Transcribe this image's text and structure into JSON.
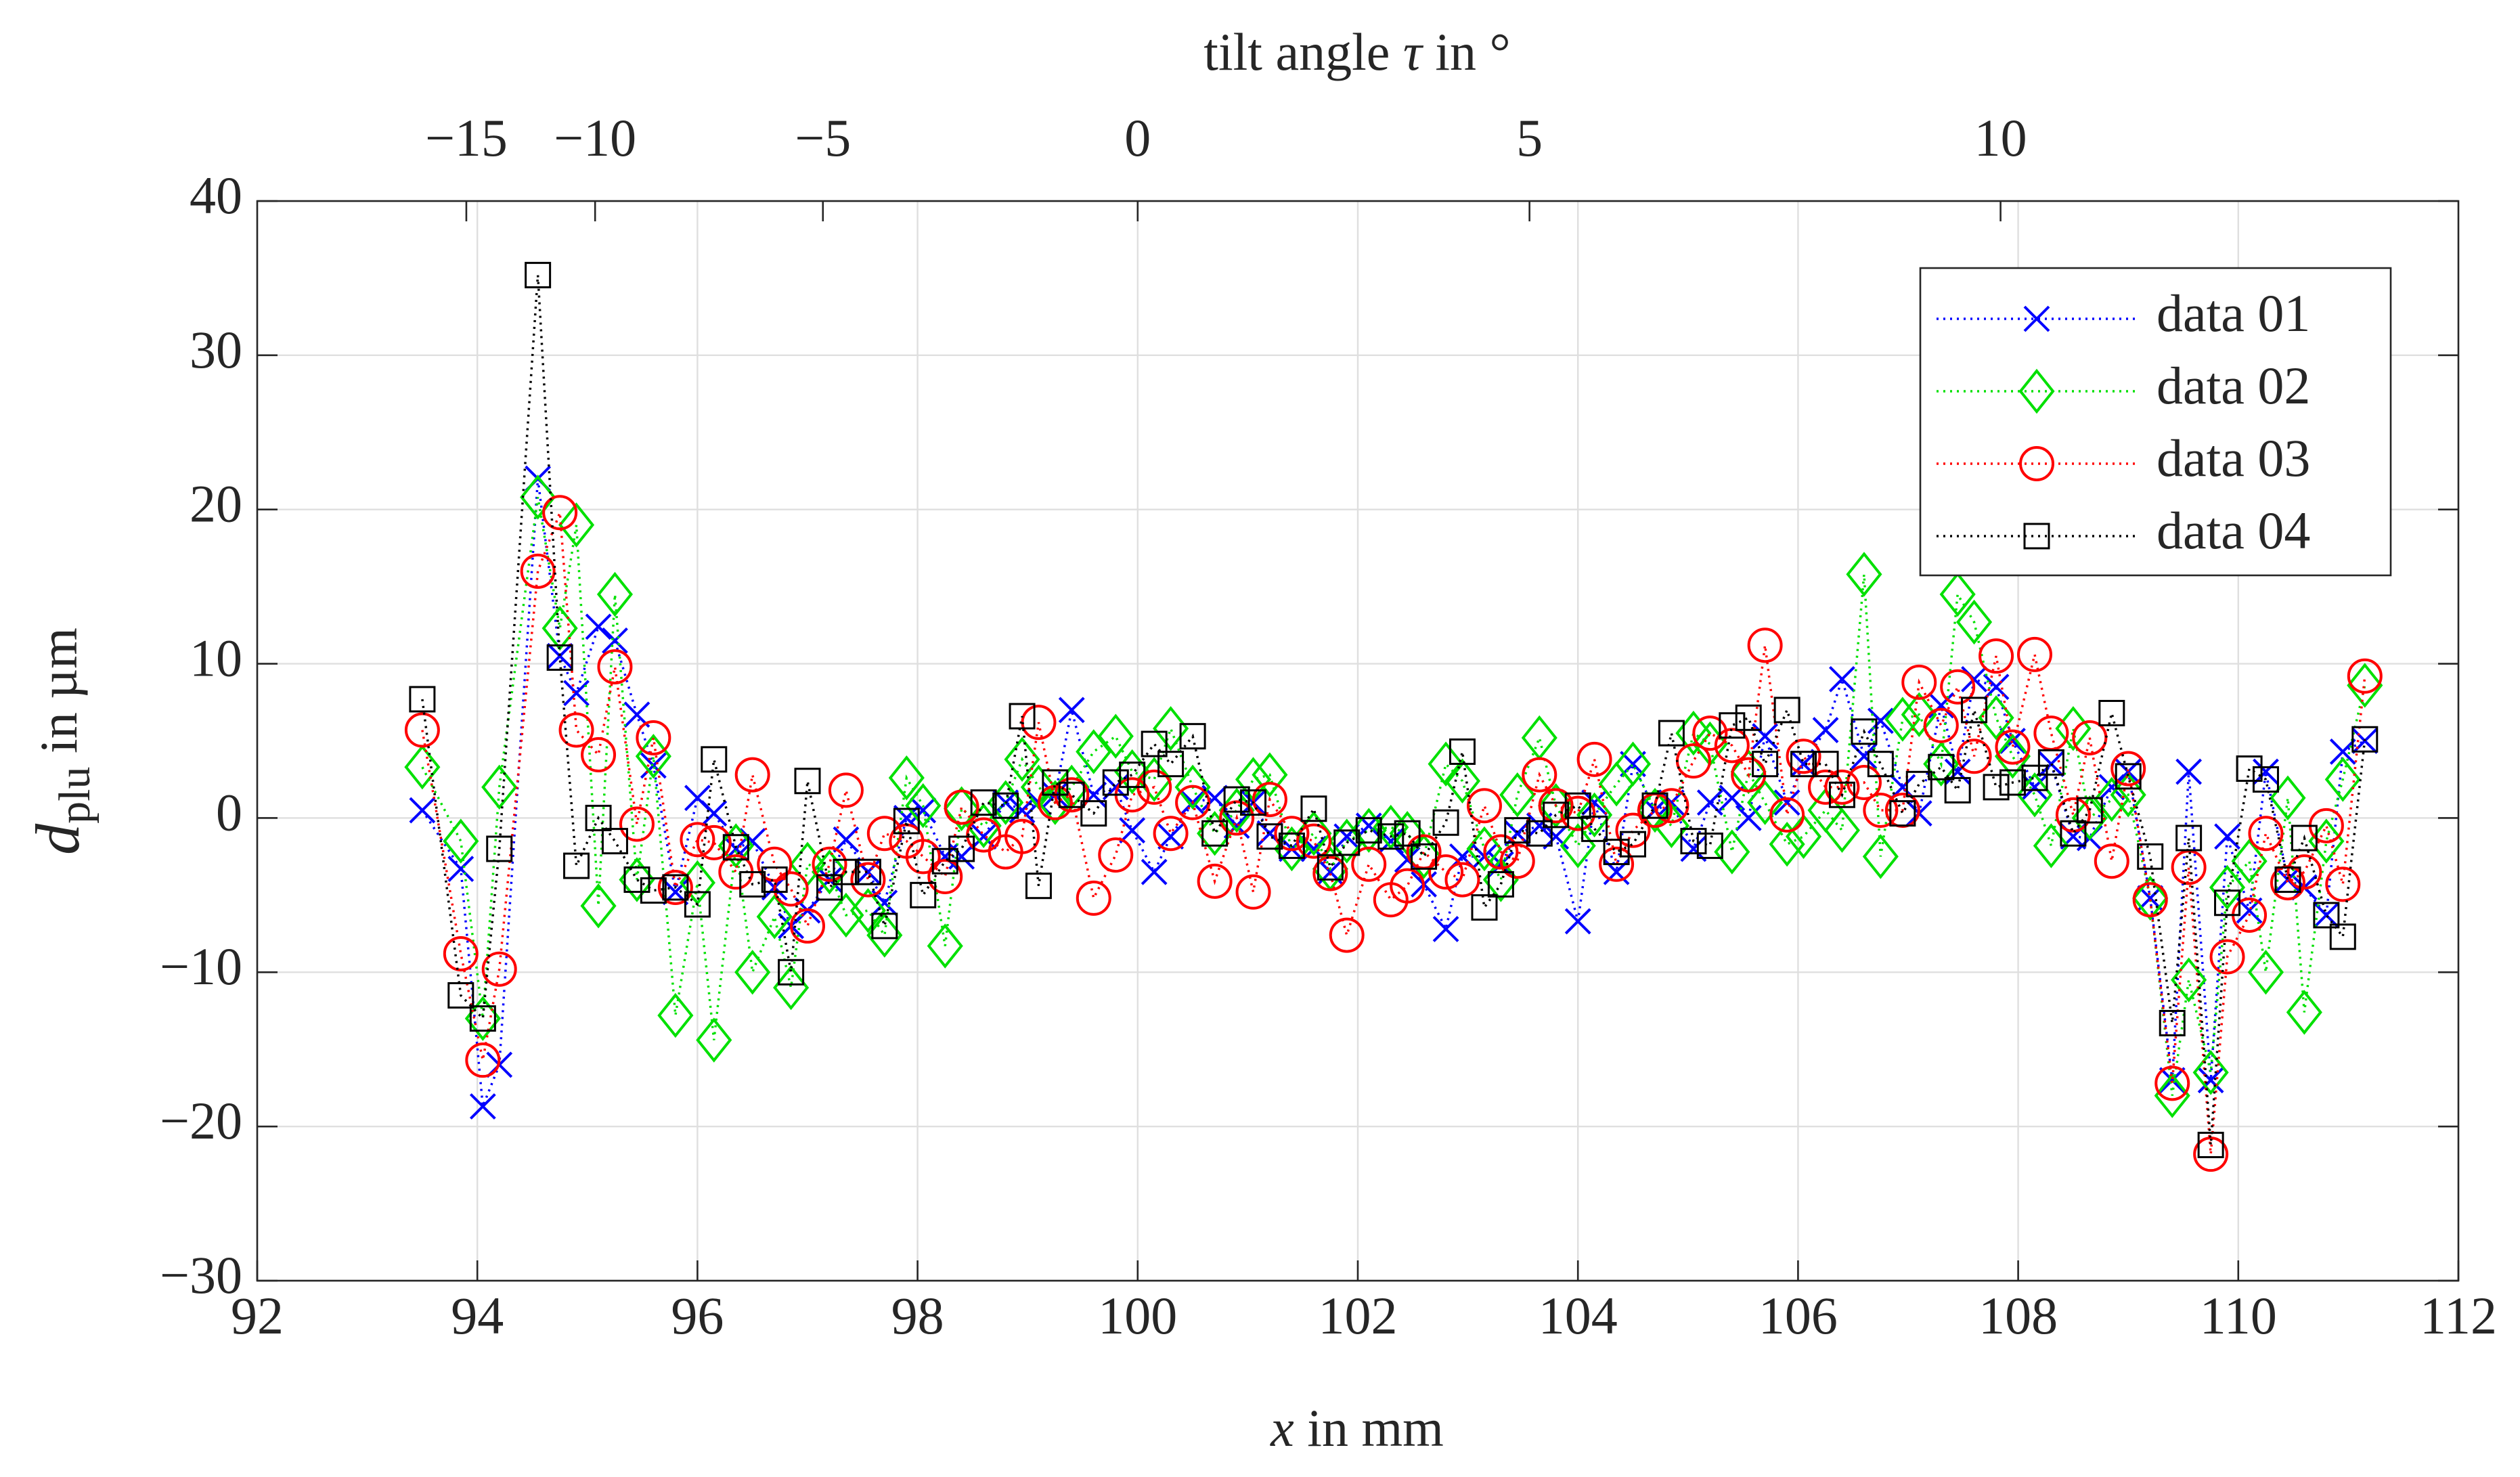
{
  "chart_data": {
    "type": "line",
    "xlabel": {
      "symbol": "x",
      "text": " in mm"
    },
    "ylabel": {
      "symbol": "d",
      "subscript": "plu",
      "text": " in µm"
    },
    "x2label": {
      "text": "tilt angle ",
      "symbol": "τ",
      "text2": " in °"
    },
    "xlim": [
      92,
      112
    ],
    "xticks": [
      92,
      94,
      96,
      98,
      100,
      102,
      104,
      106,
      108,
      110,
      112
    ],
    "ylim": [
      -30,
      40
    ],
    "yticks": [
      {
        "value": -30,
        "label": "−30"
      },
      {
        "value": -20,
        "label": "−20"
      },
      {
        "value": -10,
        "label": "−10"
      },
      0,
      10,
      20,
      30,
      40
    ],
    "x2ticks": [
      {
        "value": -15,
        "label": "−15",
        "x": 93.9
      },
      {
        "value": -10,
        "label": "−10",
        "x": 95.07
      },
      {
        "value": -5,
        "label": "−5",
        "x": 97.14
      },
      {
        "value": 0,
        "label": "0",
        "x": 100.0
      },
      {
        "value": 5,
        "label": "5",
        "x": 103.56
      },
      {
        "value": 10,
        "label": "10",
        "x": 107.84
      }
    ],
    "grid": true,
    "legend": "upper right",
    "x": [
      93.5,
      93.85,
      94.05,
      94.2,
      94.55,
      94.75,
      94.9,
      95.1,
      95.25,
      95.45,
      95.6,
      95.8,
      96.0,
      96.15,
      96.35,
      96.5,
      96.7,
      96.85,
      97.0,
      97.2,
      97.35,
      97.55,
      97.7,
      97.9,
      98.05,
      98.25,
      98.4,
      98.6,
      98.8,
      98.95,
      99.1,
      99.25,
      99.4,
      99.6,
      99.8,
      99.95,
      100.15,
      100.3,
      100.5,
      100.7,
      100.9,
      101.05,
      101.2,
      101.4,
      101.6,
      101.75,
      101.9,
      102.1,
      102.3,
      102.45,
      102.6,
      102.8,
      102.95,
      103.15,
      103.3,
      103.45,
      103.65,
      103.8,
      104.0,
      104.15,
      104.35,
      104.5,
      104.7,
      104.85,
      105.05,
      105.2,
      105.4,
      105.55,
      105.7,
      105.9,
      106.05,
      106.25,
      106.4,
      106.6,
      106.75,
      106.95,
      107.1,
      107.3,
      107.45,
      107.6,
      107.8,
      107.95,
      108.15,
      108.3,
      108.5,
      108.65,
      108.85,
      109.0,
      109.2,
      109.4,
      109.55,
      109.75,
      109.9,
      110.1,
      110.25,
      110.45,
      110.6,
      110.8,
      110.95,
      111.15
    ],
    "series": [
      {
        "name": "data 01",
        "color": "#0000ff",
        "marker": "x",
        "values": [
          0.5,
          -3.3,
          -18.7,
          -16,
          22,
          10.5,
          8.1,
          12.4,
          11.5,
          6.7,
          3.4,
          -4.8,
          1.3,
          0.3,
          -2,
          -1.5,
          -4.5,
          -7,
          -6,
          -4,
          -1.4,
          -3.5,
          -5.5,
          0,
          0.5,
          -2.5,
          -2.5,
          -1.2,
          1,
          0.5,
          1,
          1.5,
          7,
          1.5,
          2,
          -0.8,
          -3.5,
          -1.2,
          1,
          1.3,
          -0.5,
          1,
          -1,
          -2,
          -2,
          -3.5,
          -1.2,
          -0.5,
          -1.5,
          -2.7,
          -4.3,
          -7.2,
          -2.5,
          -2.5,
          -3,
          -1,
          -0.5,
          -1.2,
          -6.7,
          1,
          -3.5,
          3.5,
          0.5,
          1,
          -2,
          1,
          1.3,
          0,
          5.3,
          1,
          3.5,
          5.7,
          9,
          4,
          6.3,
          2,
          0.3,
          7.3,
          3,
          9,
          8.5,
          5,
          2,
          3.5,
          -1.2,
          -1.3,
          2,
          3,
          -5.2,
          -17,
          3,
          -17,
          -1.2,
          -6,
          3,
          -4,
          -4.5,
          -6.3,
          4.3,
          5
        ]
      },
      {
        "name": "data 02",
        "color": "#00e000",
        "marker": "diamond",
        "values": [
          3.3,
          -1.5,
          -13,
          2,
          20.8,
          12.3,
          19,
          -5.7,
          14.5,
          -4,
          4,
          -12.8,
          -4.2,
          -14.4,
          -1.8,
          -10,
          -6.4,
          -11,
          -3,
          -3.5,
          -6.3,
          -6,
          -7.6,
          2.6,
          0.8,
          -8.3,
          0.6,
          -0.5,
          1,
          3.8,
          2,
          1,
          2,
          4.3,
          5.3,
          3,
          2.5,
          5.8,
          2,
          -1,
          0.5,
          2.5,
          2.8,
          -2,
          -1,
          -3.3,
          -1.5,
          -0.8,
          -0.6,
          -1,
          -2.5,
          3.5,
          2.4,
          -2,
          -4,
          1.5,
          5.2,
          0.8,
          -1.8,
          0.2,
          2.2,
          3.5,
          0.5,
          -0.5,
          5.5,
          4.8,
          -2.2,
          3,
          1,
          -1.7,
          -1.2,
          0.5,
          -0.8,
          15.8,
          -2.5,
          6.4,
          6.7,
          3.5,
          14.5,
          12.7,
          6.5,
          4,
          1.5,
          -1.8,
          5.8,
          0,
          1.2,
          1.5,
          -5.2,
          -18,
          -10.5,
          -16.5,
          -4.5,
          -2.8,
          -10,
          1.3,
          -12.6,
          -1.5,
          2.5,
          8.6
        ]
      },
      {
        "name": "data 03",
        "color": "#ff0000",
        "marker": "circle",
        "values": [
          5.7,
          -8.8,
          -15.7,
          -9.8,
          16,
          19.8,
          5.7,
          4.1,
          9.8,
          -0.4,
          5.2,
          -4.5,
          -1.4,
          -1.6,
          -3.5,
          2.8,
          -3,
          -4.6,
          -7,
          -3,
          1.8,
          -4,
          -1,
          -1.5,
          -2.5,
          -3.8,
          0.7,
          -1.1,
          -2.2,
          -1.2,
          6.2,
          1,
          1.5,
          -5.2,
          -2.4,
          1.5,
          2,
          -1,
          1,
          -4.1,
          0,
          -4.8,
          1.2,
          -1,
          -1.5,
          -3.6,
          -7.6,
          -3,
          -5.3,
          -4.4,
          -2.2,
          -3.5,
          -4,
          0.8,
          -2.2,
          -2.8,
          2.8,
          0.8,
          0.3,
          3.8,
          -3,
          -0.8,
          0.5,
          0.8,
          3.7,
          5.5,
          4.7,
          2.8,
          11.2,
          0.2,
          4,
          2,
          2,
          2.3,
          0.5,
          0.5,
          8.8,
          6,
          8.5,
          4,
          10.5,
          4.6,
          10.6,
          5.5,
          0.2,
          5.2,
          -2.8,
          3.2,
          -5.3,
          -17.2,
          -3.2,
          -21.8,
          -9,
          -6.3,
          -1,
          -4.2,
          -3.5,
          -0.5,
          -4.3,
          9.2
        ]
      },
      {
        "name": "data 04",
        "color": "#000000",
        "marker": "square",
        "values": [
          7.7,
          -11.5,
          -13,
          -2,
          35.2,
          10.4,
          -3.1,
          0,
          -1.5,
          -4,
          -4.7,
          -4.5,
          -5.6,
          3.8,
          -1.9,
          -4.3,
          -4,
          -10,
          2.4,
          -4.5,
          -3.5,
          -3.5,
          -7,
          -0.2,
          -5,
          -2.8,
          -2,
          1,
          0.8,
          6.6,
          -4.4,
          2.3,
          1.5,
          0.3,
          2.3,
          2.8,
          4.8,
          3.5,
          5.3,
          -1,
          1.2,
          1,
          -1.2,
          -1.8,
          0.6,
          -3.2,
          -1.6,
          -0.8,
          -1.2,
          -1,
          -2.5,
          -0.3,
          4.3,
          -5.8,
          -4.3,
          -0.8,
          -1,
          0.2,
          0.8,
          -0.7,
          -2.2,
          -1.7,
          0.8,
          5.5,
          -1.5,
          -1.8,
          6,
          6.5,
          3.5,
          7,
          3.5,
          3.5,
          1.5,
          5.6,
          3.5,
          0.3,
          2.2,
          3.3,
          1.8,
          7,
          2,
          2.3,
          2.6,
          3.6,
          -1,
          0.5,
          6.8,
          2.7,
          -2.5,
          -13.3,
          -1.3,
          -21.2,
          -5.5,
          3.2,
          2.5,
          -4,
          -1.3,
          -6.3,
          -7.7,
          5.1
        ]
      }
    ]
  }
}
